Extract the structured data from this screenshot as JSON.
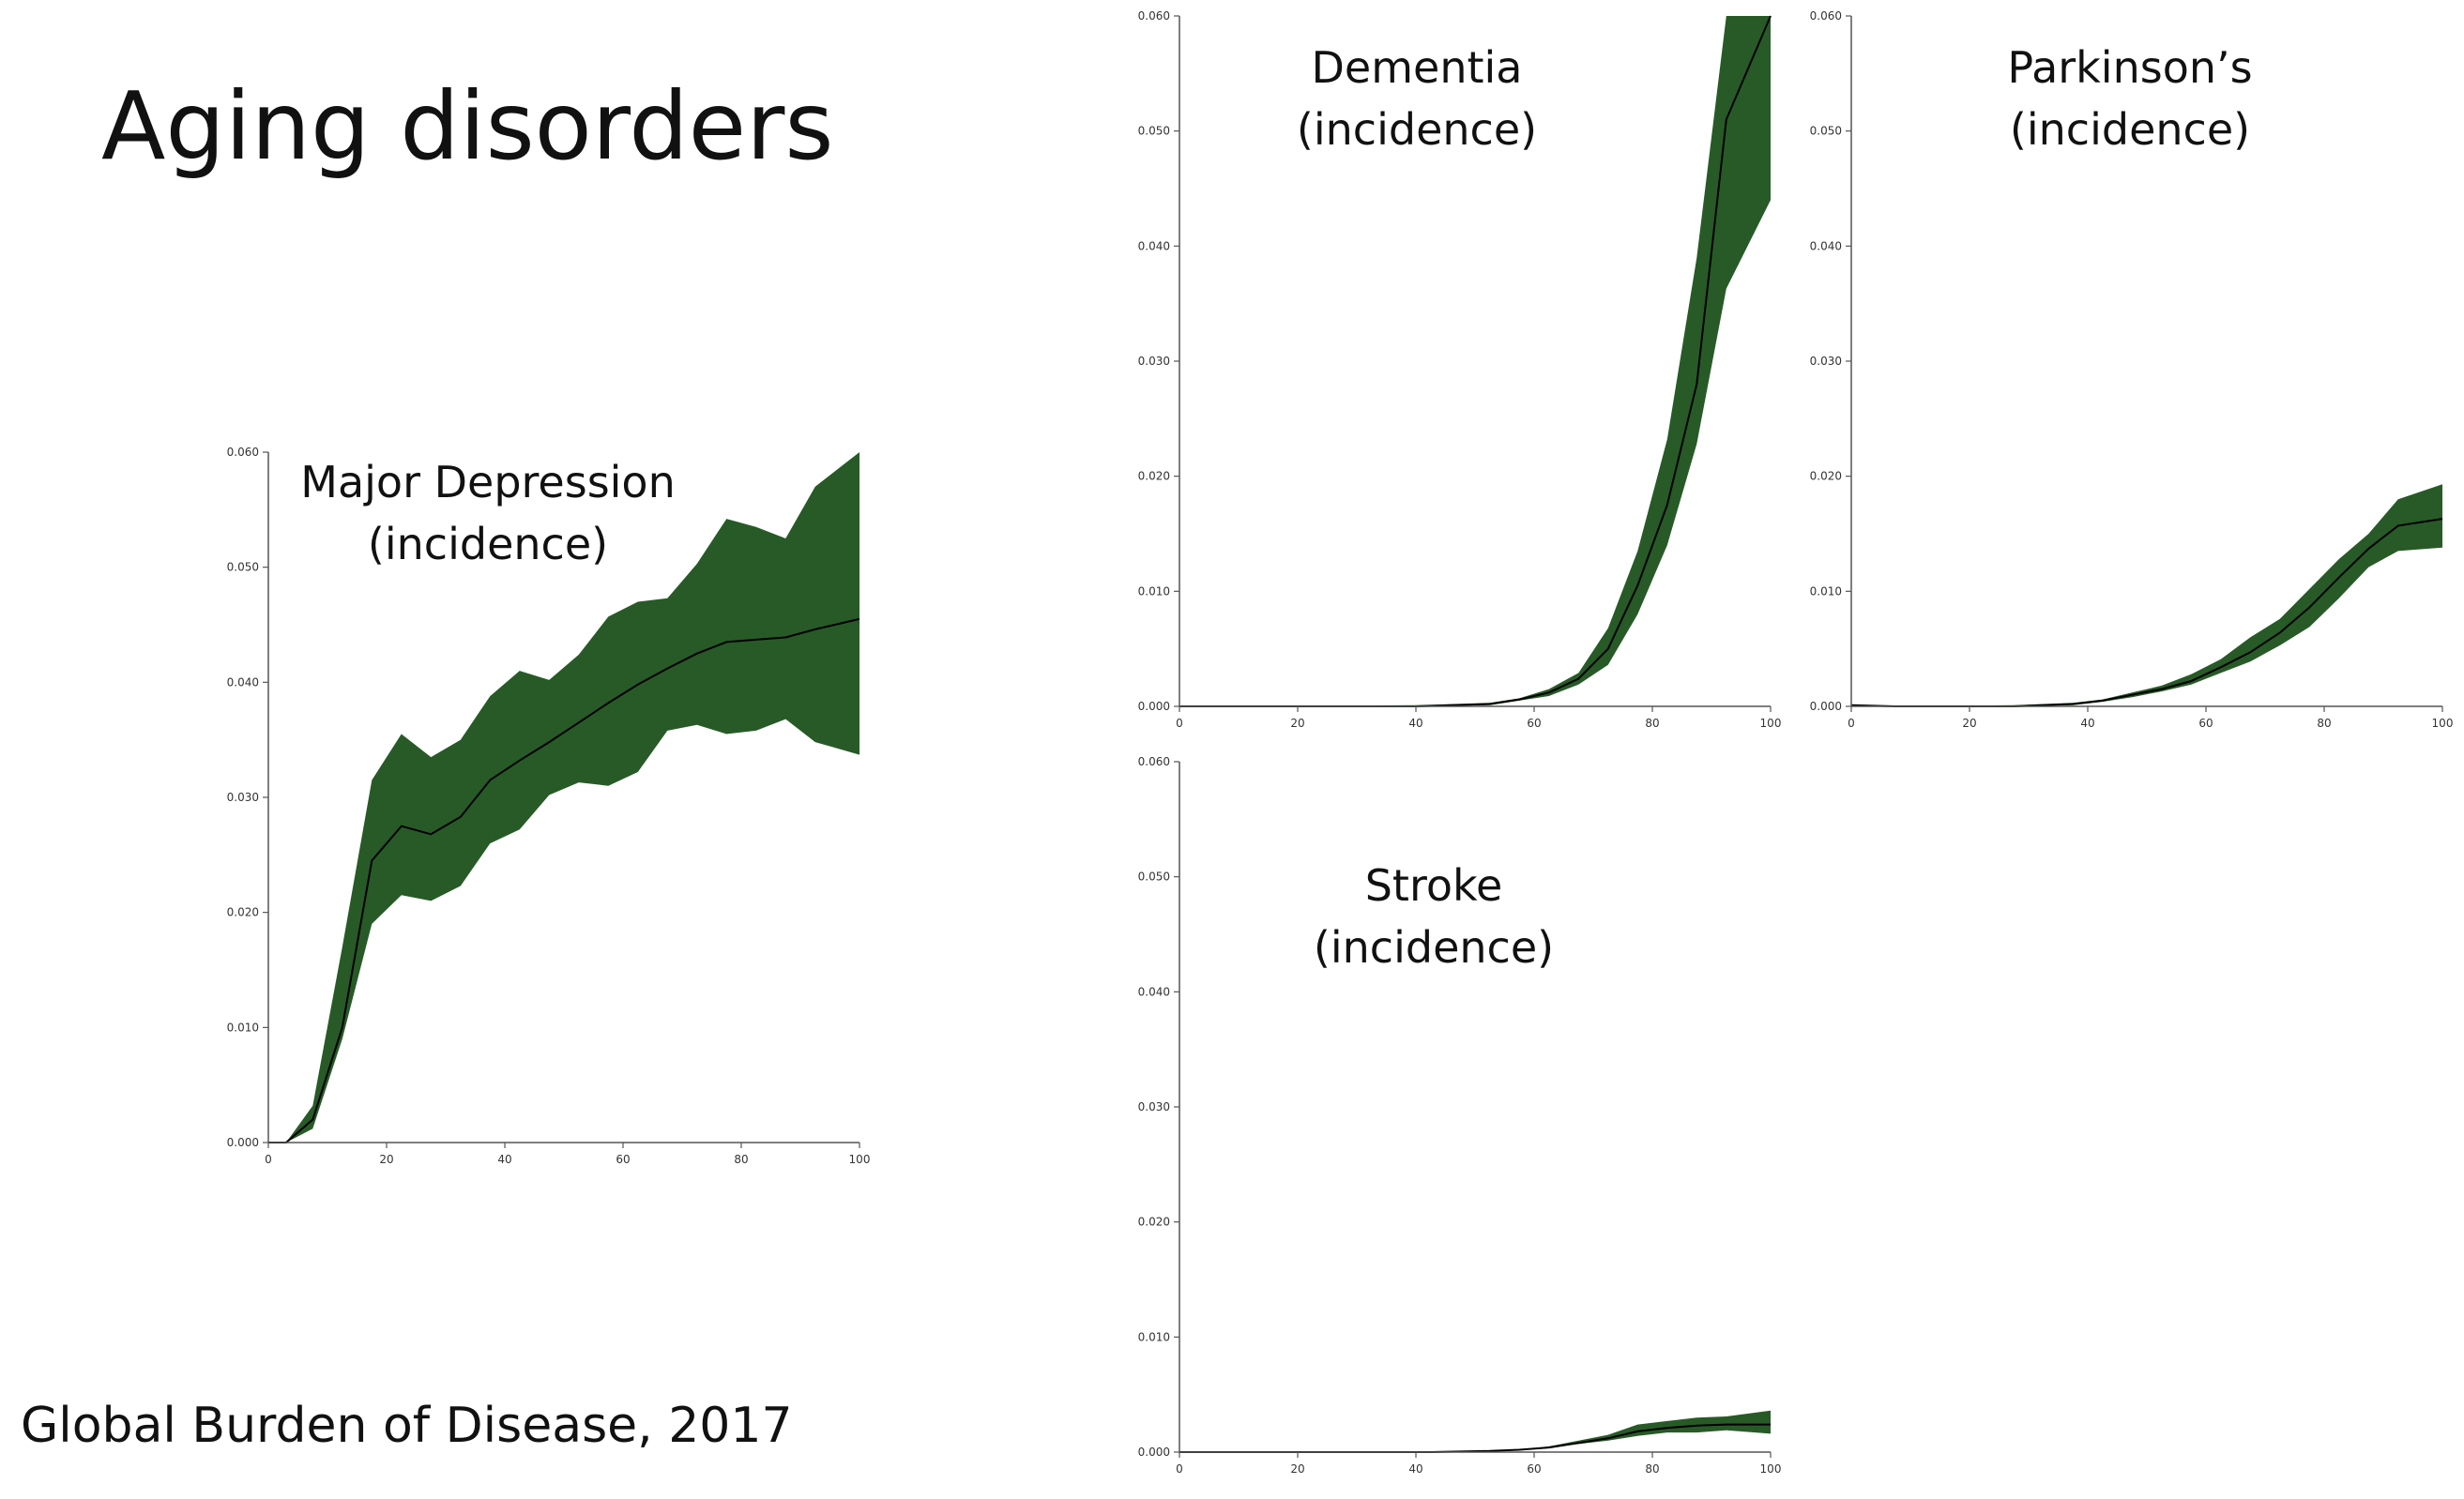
{
  "slide": {
    "title": "Aging disorders",
    "source": "Global Burden of Disease, 2017"
  },
  "colors": {
    "band": "#275a27",
    "line": "#000000",
    "axis": "#555555"
  },
  "chart_data": [
    {
      "type": "area",
      "id": "depression",
      "title_lines": [
        "Major Depression",
        "(incidence)"
      ],
      "xlim": [
        0,
        100
      ],
      "ylim": [
        0,
        0.06
      ],
      "xticks": [
        0,
        20,
        40,
        60,
        80,
        100
      ],
      "yticks": [
        "0.000",
        "0.010",
        "0.020",
        "0.030",
        "0.040",
        "0.050",
        "0.060"
      ],
      "x": [
        0,
        3,
        7.5,
        12.5,
        17.5,
        22.5,
        27.5,
        32.5,
        37.5,
        42.5,
        47.5,
        52.5,
        57.5,
        62.5,
        67.5,
        72.5,
        77.5,
        82.5,
        87.5,
        92.5,
        100
      ],
      "mean": [
        0.0,
        0.0,
        0.002,
        0.01,
        0.0245,
        0.0275,
        0.0268,
        0.0283,
        0.0315,
        0.0332,
        0.0348,
        0.0365,
        0.0382,
        0.0398,
        0.0412,
        0.0425,
        0.0435,
        0.0437,
        0.0439,
        0.0446,
        0.0455
      ],
      "upper": [
        0.0,
        0.0,
        0.0032,
        0.017,
        0.0315,
        0.0355,
        0.0335,
        0.035,
        0.0388,
        0.041,
        0.0402,
        0.0424,
        0.0457,
        0.047,
        0.0473,
        0.0503,
        0.0542,
        0.0535,
        0.0525,
        0.057,
        0.06
      ],
      "lower": [
        0.0,
        0.0,
        0.0012,
        0.009,
        0.019,
        0.0215,
        0.021,
        0.0223,
        0.026,
        0.0272,
        0.0302,
        0.0313,
        0.031,
        0.0322,
        0.0358,
        0.0363,
        0.0355,
        0.0358,
        0.0368,
        0.0348,
        0.0337
      ]
    },
    {
      "type": "area",
      "id": "dementia",
      "title_lines": [
        "Dementia",
        "(incidence)"
      ],
      "xlim": [
        0,
        100
      ],
      "ylim": [
        0,
        0.06
      ],
      "xticks": [
        0,
        20,
        40,
        60,
        80,
        100
      ],
      "yticks": [
        "0.000",
        "0.010",
        "0.020",
        "0.030",
        "0.040",
        "0.050",
        "0.060"
      ],
      "x": [
        0,
        40,
        52.5,
        57.5,
        62.5,
        67.5,
        72.5,
        77.5,
        82.5,
        87.5,
        92.5,
        100
      ],
      "mean": [
        0.0,
        0.0,
        0.0002,
        0.0006,
        0.0012,
        0.0024,
        0.005,
        0.0105,
        0.0175,
        0.028,
        0.051,
        0.06
      ],
      "upper": [
        0.0,
        0.0001,
        0.0003,
        0.0007,
        0.0015,
        0.0029,
        0.0068,
        0.0135,
        0.0232,
        0.039,
        0.06,
        0.06
      ],
      "lower": [
        0.0,
        0.0,
        0.0001,
        0.0005,
        0.0009,
        0.0019,
        0.0036,
        0.008,
        0.014,
        0.0228,
        0.0363,
        0.044
      ]
    },
    {
      "type": "area",
      "id": "parkinsons",
      "title_lines": [
        "Parkinson’s",
        "(incidence)"
      ],
      "xlim": [
        0,
        100
      ],
      "ylim": [
        0,
        0.06
      ],
      "xticks": [
        0,
        20,
        40,
        60,
        80,
        100
      ],
      "yticks": [
        "0.000",
        "0.010",
        "0.020",
        "0.030",
        "0.040",
        "0.050",
        "0.060"
      ],
      "x": [
        0,
        7.5,
        27.5,
        37.5,
        42.5,
        47.5,
        52.5,
        57.5,
        62.5,
        67.5,
        72.5,
        77.5,
        82.5,
        87.5,
        92.5,
        100
      ],
      "mean": [
        0.0001,
        0.0,
        0.0,
        0.0002,
        0.0005,
        0.001,
        0.0015,
        0.0022,
        0.0034,
        0.0047,
        0.0064,
        0.0086,
        0.0112,
        0.0137,
        0.0157,
        0.0163
      ],
      "upper": [
        0.0001,
        0.0,
        0.0001,
        0.0003,
        0.0006,
        0.0012,
        0.0018,
        0.0028,
        0.0041,
        0.006,
        0.0076,
        0.0102,
        0.0128,
        0.015,
        0.018,
        0.0193
      ],
      "lower": [
        0.0001,
        0.0,
        0.0,
        0.0001,
        0.0004,
        0.0008,
        0.0013,
        0.0019,
        0.0029,
        0.0039,
        0.0053,
        0.0069,
        0.0094,
        0.0121,
        0.0135,
        0.0138
      ]
    },
    {
      "type": "area",
      "id": "stroke",
      "title_lines": [
        "Stroke",
        "(incidence)"
      ],
      "xlim": [
        0,
        100
      ],
      "ylim": [
        0,
        0.06
      ],
      "xticks": [
        0,
        20,
        40,
        60,
        80,
        100
      ],
      "yticks": [
        "0.000",
        "0.010",
        "0.020",
        "0.030",
        "0.040",
        "0.050",
        "0.060"
      ],
      "x": [
        0,
        42.5,
        52.5,
        57.5,
        62.5,
        67.5,
        72.5,
        77.5,
        82.5,
        87.5,
        92.5,
        100
      ],
      "mean": [
        0.0,
        0.0,
        0.0001,
        0.0002,
        0.0004,
        0.0008,
        0.0012,
        0.0018,
        0.0021,
        0.0023,
        0.0024,
        0.0024
      ],
      "upper": [
        0.0,
        0.0,
        0.0001,
        0.0002,
        0.0005,
        0.001,
        0.0015,
        0.0024,
        0.0027,
        0.003,
        0.0031,
        0.0036
      ],
      "lower": [
        0.0,
        0.0,
        0.0001,
        0.0002,
        0.0004,
        0.0007,
        0.001,
        0.0014,
        0.0017,
        0.0017,
        0.0019,
        0.0016
      ]
    }
  ]
}
